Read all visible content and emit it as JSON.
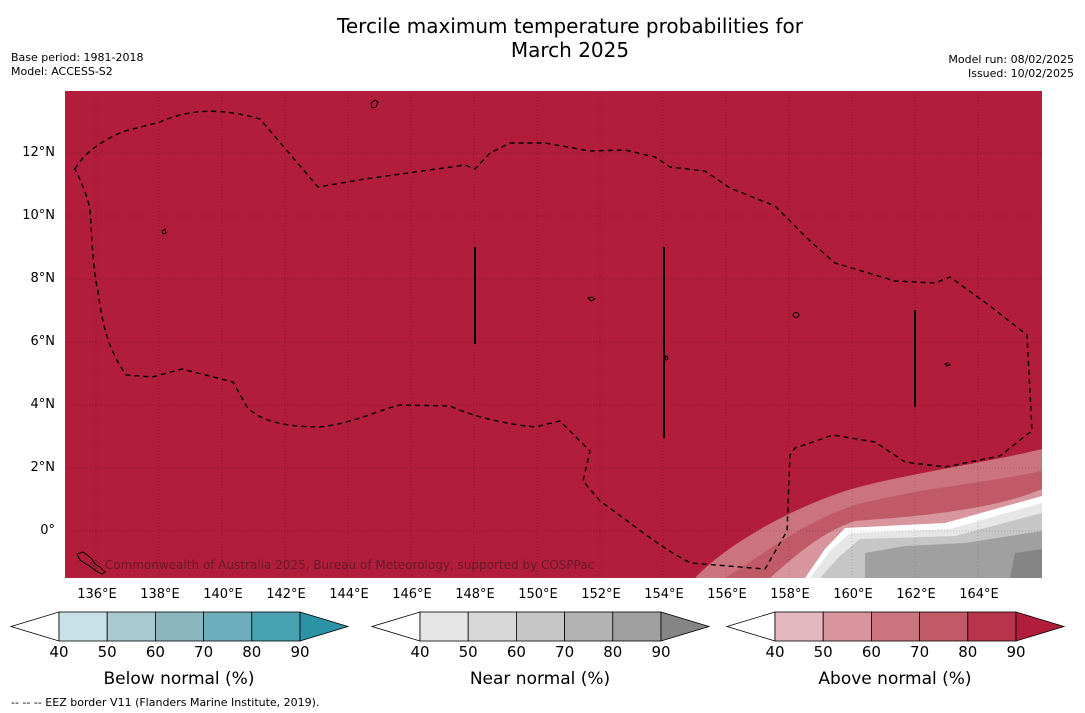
{
  "title_line1": "Tercile maximum temperature probabilities for",
  "title_line2": "March 2025",
  "meta_left": [
    "Base period: 1981-2018",
    "Model: ACCESS-S2"
  ],
  "meta_right": [
    "Model run: 08/02/2025",
    "Issued: 10/02/2025"
  ],
  "map": {
    "lat_labels": [
      "12°N",
      "10°N",
      "8°N",
      "6°N",
      "4°N",
      "2°N",
      "0°"
    ],
    "lon_labels": [
      "136°E",
      "138°E",
      "140°E",
      "142°E",
      "144°E",
      "146°E",
      "148°E",
      "150°E",
      "152°E",
      "154°E",
      "156°E",
      "158°E",
      "160°E",
      "162°E",
      "164°E"
    ],
    "copyright": "© Commonwealth of Australia 2025, Bureau of Meteorology, supported by COSPPac",
    "background_color": "#b11d3a",
    "border_style": "dashed"
  },
  "colorbars": [
    {
      "title": "Below normal (%)",
      "ticks": [
        "40",
        "50",
        "60",
        "70",
        "80",
        "90"
      ],
      "colors": [
        "#ffffff",
        "#c8e1e7",
        "#a8c9cf",
        "#8ab6c0",
        "#6dadbc",
        "#49a2b2",
        "#2b93a6"
      ]
    },
    {
      "title": "Near normal (%)",
      "ticks": [
        "40",
        "50",
        "60",
        "70",
        "80",
        "90"
      ],
      "colors": [
        "#ffffff",
        "#e6e6e6",
        "#d7d7d7",
        "#c6c6c6",
        "#b3b3b3",
        "#a0a0a0",
        "#858585"
      ]
    },
    {
      "title": "Above normal (%)",
      "ticks": [
        "40",
        "50",
        "60",
        "70",
        "80",
        "90"
      ],
      "colors": [
        "#ffffff",
        "#e4b8bf",
        "#d8959d",
        "#cc747d",
        "#c05a67",
        "#b8344a",
        "#b11d3a"
      ]
    }
  ],
  "footnote": "--  --  -- EEZ border V11 (Flanders Marine Institute, 2019)."
}
